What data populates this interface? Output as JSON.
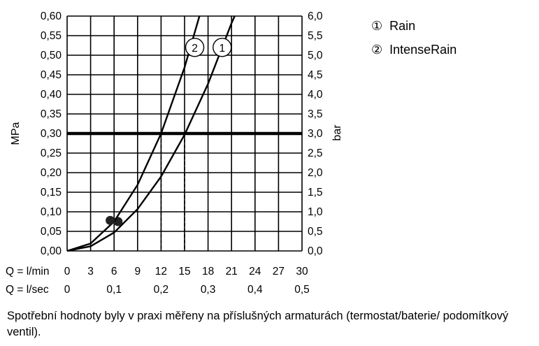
{
  "chart_data": {
    "type": "line",
    "ylabel_left": "MPa",
    "ylabel_right": "bar",
    "y_left_ticks": [
      "0,00",
      "0,05",
      "0,10",
      "0,15",
      "0,20",
      "0,25",
      "0,30",
      "0,35",
      "0,40",
      "0,45",
      "0,50",
      "0,55",
      "0,60"
    ],
    "y_right_ticks": [
      "0,0",
      "0,5",
      "1,0",
      "1,5",
      "2,0",
      "2,5",
      "3,0",
      "3,5",
      "4,0",
      "4,5",
      "5,0",
      "5,5",
      "6,0"
    ],
    "ylim": [
      0,
      0.6
    ],
    "xlim": [
      0,
      30
    ],
    "x_row1_label": "Q = l/min",
    "x_row1_ticks": [
      "0",
      "3",
      "6",
      "9",
      "12",
      "15",
      "18",
      "21",
      "24",
      "27",
      "30"
    ],
    "x_row2_label": "Q = l/sec",
    "x_row2_ticks": [
      "0",
      "0,1",
      "0,2",
      "0,3",
      "0,4",
      "0,5"
    ],
    "reference_pressure": 0.3,
    "series": [
      {
        "name": "Rain",
        "marker": "1",
        "points": [
          [
            0,
            0
          ],
          [
            3,
            0.012
          ],
          [
            6,
            0.047
          ],
          [
            9,
            0.107
          ],
          [
            12,
            0.19
          ],
          [
            15,
            0.297
          ],
          [
            18,
            0.427
          ],
          [
            21,
            0.582
          ],
          [
            21.4,
            0.6
          ]
        ],
        "operating_point": [
          6.5,
          0.075
        ],
        "reference_flow": 15.0
      },
      {
        "name": "IntenseRain",
        "marker": "2",
        "points": [
          [
            0,
            0
          ],
          [
            3,
            0.019
          ],
          [
            6,
            0.075
          ],
          [
            9,
            0.169
          ],
          [
            12,
            0.3
          ],
          [
            15,
            0.469
          ],
          [
            16.9,
            0.6
          ]
        ],
        "operating_point": [
          5.5,
          0.078
        ],
        "reference_flow": 12.0
      }
    ]
  },
  "legend": [
    {
      "marker": "①",
      "label": "Rain"
    },
    {
      "marker": "②",
      "label": "IntenseRain"
    }
  ],
  "footnote": "Spotřební hodnoty byly v praxi měřeny na příslušných armaturách (termostat/baterie/ podomítkový ventil)."
}
